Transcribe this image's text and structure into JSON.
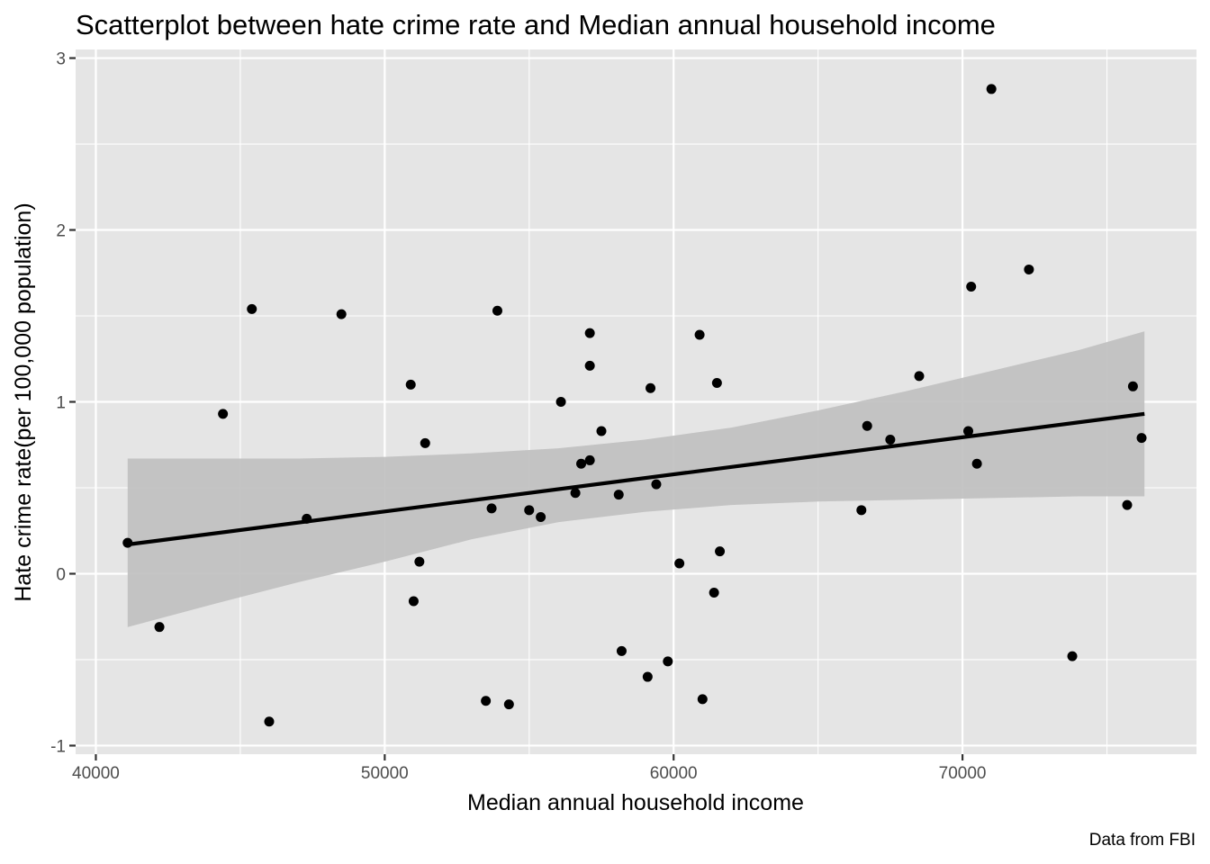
{
  "chart_data": {
    "type": "scatter",
    "title": "Scatterplot between hate crime rate and Median annual household income",
    "xlabel": "Median annual household income",
    "ylabel": "Hate crime rate(per 100,000 population)",
    "caption": "Data from FBI",
    "xlim": [
      39300,
      78100
    ],
    "ylim": [
      -1.05,
      3.05
    ],
    "x_ticks": [
      40000,
      50000,
      60000,
      70000
    ],
    "x_tick_labels": [
      "40000",
      "50000",
      "60000",
      "70000"
    ],
    "y_ticks": [
      -1,
      0,
      1,
      2,
      3
    ],
    "y_tick_labels": [
      "-1",
      "0",
      "1",
      "2",
      "3"
    ],
    "grid": true,
    "colors": {
      "panel_background": "#e5e5e5",
      "grid": "#ffffff",
      "points": "#000000",
      "fit_line": "#000000",
      "confidence_band": "#bfbfbf"
    },
    "points": [
      {
        "x": 41100,
        "y": 0.18
      },
      {
        "x": 42200,
        "y": -0.31
      },
      {
        "x": 44400,
        "y": 0.93
      },
      {
        "x": 45400,
        "y": 1.54
      },
      {
        "x": 46000,
        "y": -0.86
      },
      {
        "x": 47300,
        "y": 0.32
      },
      {
        "x": 48500,
        "y": 1.51
      },
      {
        "x": 50900,
        "y": 1.1
      },
      {
        "x": 51000,
        "y": -0.16
      },
      {
        "x": 51200,
        "y": 0.07
      },
      {
        "x": 51400,
        "y": 0.76
      },
      {
        "x": 53500,
        "y": -0.74
      },
      {
        "x": 53700,
        "y": 0.38
      },
      {
        "x": 53900,
        "y": 1.53
      },
      {
        "x": 54300,
        "y": -0.76
      },
      {
        "x": 55000,
        "y": 0.37
      },
      {
        "x": 55400,
        "y": 0.33
      },
      {
        "x": 56100,
        "y": 1.0
      },
      {
        "x": 56600,
        "y": 0.47
      },
      {
        "x": 56800,
        "y": 0.64
      },
      {
        "x": 57100,
        "y": 0.66
      },
      {
        "x": 57100,
        "y": 1.4
      },
      {
        "x": 57100,
        "y": 1.21
      },
      {
        "x": 57500,
        "y": 0.83
      },
      {
        "x": 58100,
        "y": 0.46
      },
      {
        "x": 58200,
        "y": -0.45
      },
      {
        "x": 59100,
        "y": -0.6
      },
      {
        "x": 59200,
        "y": 1.08
      },
      {
        "x": 59400,
        "y": 0.52
      },
      {
        "x": 59800,
        "y": -0.51
      },
      {
        "x": 60200,
        "y": 0.06
      },
      {
        "x": 60900,
        "y": 1.39
      },
      {
        "x": 61000,
        "y": -0.73
      },
      {
        "x": 61400,
        "y": -0.11
      },
      {
        "x": 61500,
        "y": 1.11
      },
      {
        "x": 61600,
        "y": 0.13
      },
      {
        "x": 66500,
        "y": 0.37
      },
      {
        "x": 66700,
        "y": 0.86
      },
      {
        "x": 67500,
        "y": 0.78
      },
      {
        "x": 68500,
        "y": 1.15
      },
      {
        "x": 70200,
        "y": 0.83
      },
      {
        "x": 70300,
        "y": 1.67
      },
      {
        "x": 70500,
        "y": 0.64
      },
      {
        "x": 71000,
        "y": 2.82
      },
      {
        "x": 72300,
        "y": 1.77
      },
      {
        "x": 73800,
        "y": -0.48
      },
      {
        "x": 75700,
        "y": 0.4
      },
      {
        "x": 75900,
        "y": 1.09
      },
      {
        "x": 76200,
        "y": 0.79
      }
    ],
    "fit_line": [
      {
        "x": 41100,
        "y": 0.17
      },
      {
        "x": 76300,
        "y": 0.93
      }
    ],
    "confidence_band": [
      {
        "x": 41100,
        "lower": -0.31,
        "upper": 0.67
      },
      {
        "x": 44000,
        "lower": -0.18,
        "upper": 0.67
      },
      {
        "x": 47000,
        "lower": -0.05,
        "upper": 0.67
      },
      {
        "x": 50000,
        "lower": 0.07,
        "upper": 0.68
      },
      {
        "x": 53000,
        "lower": 0.2,
        "upper": 0.7
      },
      {
        "x": 56000,
        "lower": 0.3,
        "upper": 0.73
      },
      {
        "x": 59000,
        "lower": 0.36,
        "upper": 0.78
      },
      {
        "x": 62000,
        "lower": 0.4,
        "upper": 0.85
      },
      {
        "x": 65000,
        "lower": 0.42,
        "upper": 0.95
      },
      {
        "x": 68000,
        "lower": 0.43,
        "upper": 1.06
      },
      {
        "x": 71000,
        "lower": 0.44,
        "upper": 1.18
      },
      {
        "x": 74000,
        "lower": 0.45,
        "upper": 1.3
      },
      {
        "x": 76300,
        "lower": 0.45,
        "upper": 1.41
      }
    ]
  }
}
